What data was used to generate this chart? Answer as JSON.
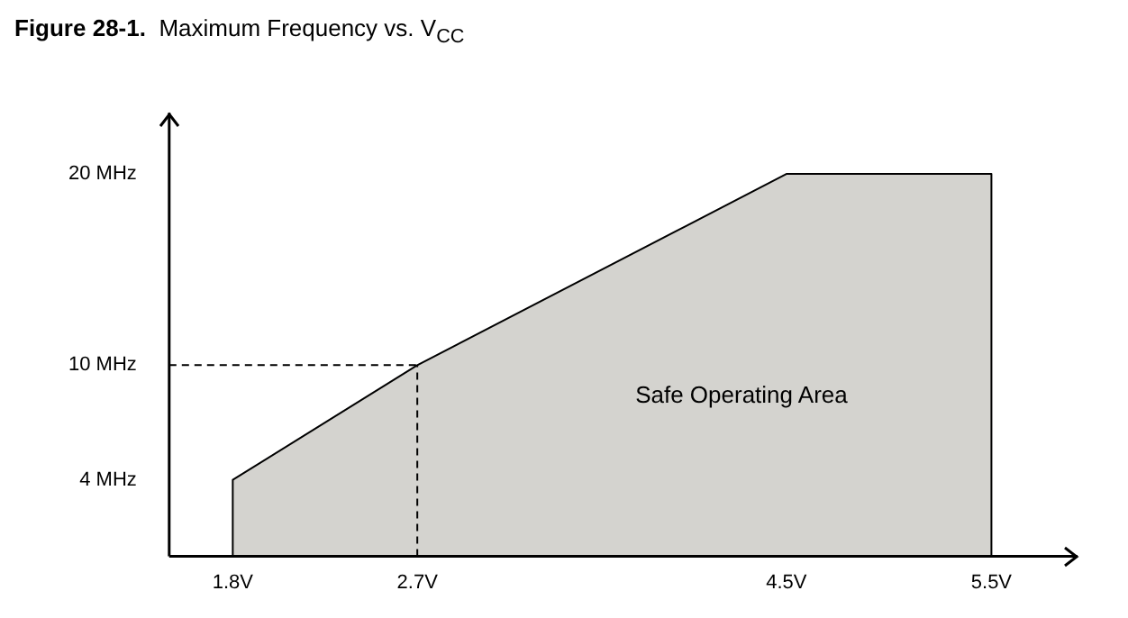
{
  "chart_data": {
    "type": "area",
    "title": "Figure 28-1.  Maximum Frequency vs. V$_{CC}$",
    "x": [
      1.8,
      1.8,
      2.7,
      4.5,
      5.5,
      5.5
    ],
    "series": [
      {
        "color": "#d4d3cf",
        "values": [
          0,
          4,
          10,
          20,
          20,
          0
        ]
      }
    ],
    "xlim": [
      1.49,
      5.92
    ],
    "ylim": [
      0,
      23.2
    ],
    "xticks": [
      {
        "value": 1.8,
        "label": "1.8V"
      },
      {
        "value": 2.7,
        "label": "2.7V"
      },
      {
        "value": 4.5,
        "label": "4.5V"
      },
      {
        "value": 5.5,
        "label": "5.5V"
      }
    ],
    "yticks": [
      {
        "value": 4,
        "label": "4 MHz"
      },
      {
        "value": 10,
        "label": "10 MHz"
      },
      {
        "value": 20,
        "label": "20 MHz"
      }
    ],
    "ref_lines": [
      {
        "axis": "y",
        "value": 10,
        "line_style": "dashed"
      },
      {
        "axis": "x",
        "value": 2.7,
        "line_style": "dashed"
      }
    ],
    "annotations": [
      "Safe Operating Area"
    ],
    "grid": false,
    "legend": false,
    "marker": "none"
  }
}
